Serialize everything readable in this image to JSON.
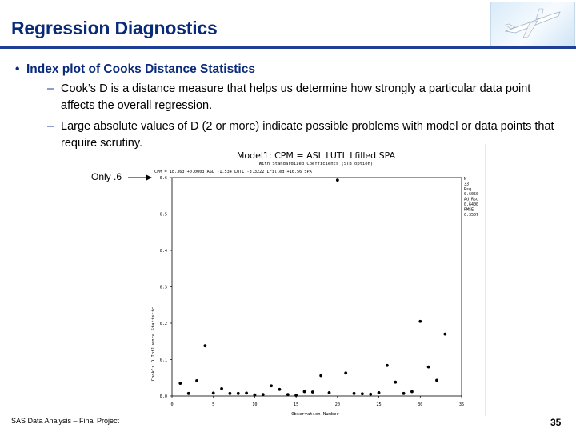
{
  "slide": {
    "title": "Regression Diagnostics",
    "bullet": "Index plot of Cooks Distance Statistics",
    "sub1": "Cook’s D is a distance measure that helps us determine how strongly a particular data point affects the overall regression.",
    "sub2": "Large absolute values of D (2 or more) indicate possible problems with model or data points that require scrutiny.",
    "callout": "Only .6",
    "footer": "SAS Data Analysis – Final Project",
    "page": "35",
    "bullet_glyph": "•",
    "dash_glyph": "–"
  },
  "chart_data": {
    "type": "scatter",
    "title": "Model1: CPM = ASL LUTL Lfilled SPA",
    "subtitle": "With Standardized Coefficients (STB option)",
    "equation": "CPM = 18.363 +0.0003 ASL -1.534 LUTL -3.3222 LFilled +16.56 SPA",
    "xlabel": "Observation Number",
    "ylabel": "Cook's D Influence Statistic",
    "xlim": [
      0,
      35
    ],
    "ylim": [
      0,
      0.6
    ],
    "xticks": [
      "0",
      "5",
      "10",
      "15",
      "20",
      "25",
      "30",
      "35"
    ],
    "yticks": [
      "0.0",
      "0.1",
      "0.2",
      "0.3",
      "0.4",
      "0.5",
      "0.6"
    ],
    "stats": [
      "N",
      "33",
      "Rsq",
      "0.6050",
      "AdjRsq",
      "0.6400",
      "RMSE",
      "0.3507"
    ],
    "x": [
      1,
      2,
      3,
      4,
      5,
      6,
      7,
      8,
      9,
      10,
      11,
      12,
      13,
      14,
      15,
      16,
      17,
      18,
      19,
      20,
      21,
      22,
      23,
      24,
      25,
      26,
      27,
      28,
      29,
      30,
      31,
      32,
      33
    ],
    "y": [
      0.035,
      0.007,
      0.042,
      0.138,
      0.008,
      0.02,
      0.007,
      0.007,
      0.008,
      0.003,
      0.004,
      0.028,
      0.018,
      0.004,
      0.002,
      0.012,
      0.011,
      0.056,
      0.009,
      0.593,
      0.063,
      0.007,
      0.006,
      0.005,
      0.009,
      0.084,
      0.038,
      0.007,
      0.012,
      0.205,
      0.08,
      0.043,
      0.17
    ]
  }
}
